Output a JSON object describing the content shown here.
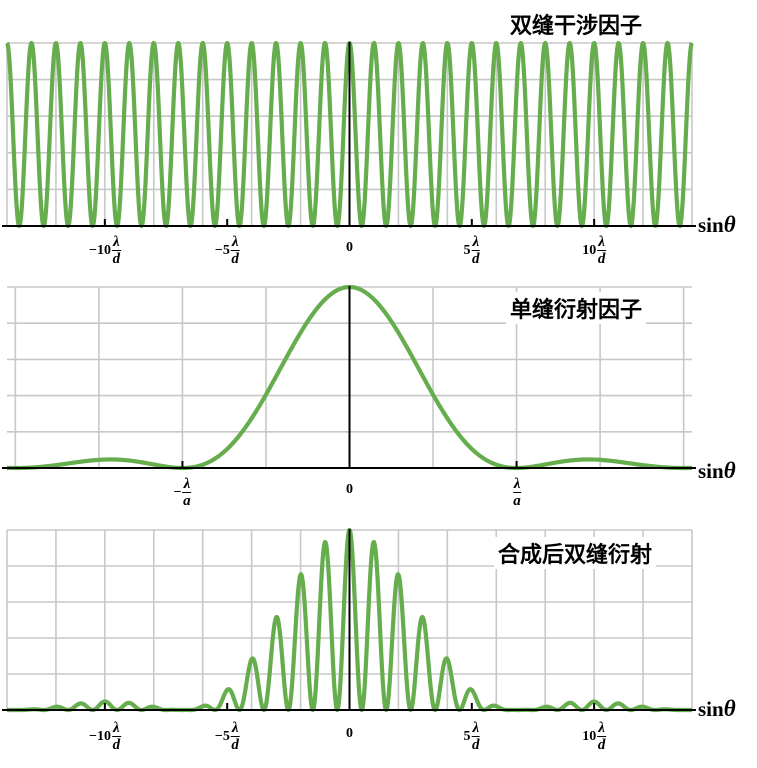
{
  "colors": {
    "curve": "#65ad4d",
    "grid": "#c8c8c8",
    "axis": "#000000"
  },
  "chart_data": [
    {
      "type": "line",
      "title": "双缝干涉因子",
      "xlabel": "sinθ",
      "xunit": "λ/d",
      "xlim": [
        -14,
        14
      ],
      "ylim": [
        0,
        1
      ],
      "ticks": [
        {
          "value": -10,
          "coef": "−10",
          "num": "λ",
          "den": "d"
        },
        {
          "value": -5,
          "coef": "−5",
          "num": "λ",
          "den": "d"
        },
        {
          "value": 0,
          "coef": "0",
          "num": "",
          "den": ""
        },
        {
          "value": 5,
          "coef": "5",
          "num": "λ",
          "den": "d"
        },
        {
          "value": 10,
          "coef": "10",
          "num": "λ",
          "den": "d"
        }
      ],
      "series": [
        {
          "function": "cos^2(pi*x)",
          "samples": 1200
        }
      ]
    },
    {
      "type": "line",
      "title": "单缝衍射因子",
      "xlabel": "sinθ",
      "xunit": "λ/a",
      "xlim": [
        -2.05,
        2.05
      ],
      "ylim": [
        0,
        1
      ],
      "ticks": [
        {
          "value": -1,
          "coef": "−",
          "num": "λ",
          "den": "a"
        },
        {
          "value": 0,
          "coef": "0",
          "num": "",
          "den": ""
        },
        {
          "value": 1,
          "coef": "",
          "num": "λ",
          "den": "a"
        }
      ],
      "series": [
        {
          "function": "(sin(pi*x)/(pi*x))^2",
          "samples": 600
        }
      ]
    },
    {
      "type": "line",
      "title": "合成后双缝衍射",
      "xlabel": "sinθ",
      "xunit": "λ/d",
      "xlim": [
        -14,
        14
      ],
      "ylim": [
        0,
        1
      ],
      "slit_ratio_d_over_a": 6.9,
      "ticks": [
        {
          "value": -10,
          "coef": "−10",
          "num": "λ",
          "den": "d"
        },
        {
          "value": -5,
          "coef": "−5",
          "num": "λ",
          "den": "d"
        },
        {
          "value": 0,
          "coef": "0",
          "num": "",
          "den": ""
        },
        {
          "value": 5,
          "coef": "5",
          "num": "λ",
          "den": "d"
        },
        {
          "value": 10,
          "coef": "10",
          "num": "λ",
          "den": "d"
        }
      ],
      "series": [
        {
          "function": "cos^2(pi*x)*sinc^2(x/6.9)",
          "samples": 1400
        }
      ]
    }
  ]
}
